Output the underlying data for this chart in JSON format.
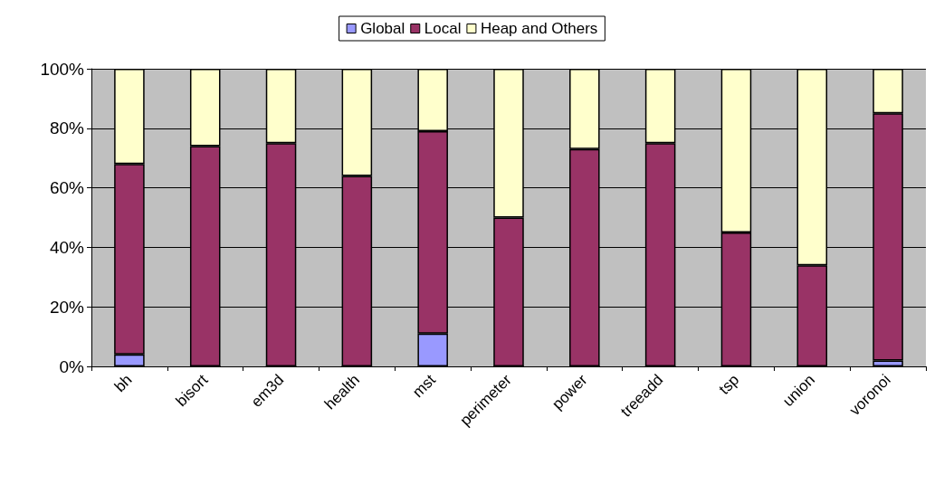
{
  "chart_data": {
    "type": "bar",
    "stacked": true,
    "categories": [
      "bh",
      "bisort",
      "em3d",
      "health",
      "mst",
      "perimeter",
      "power",
      "treeadd",
      "tsp",
      "union",
      "voronoi"
    ],
    "series": [
      {
        "name": "Global",
        "color": "#9999ff",
        "values": [
          4,
          0,
          0,
          0,
          11,
          0,
          0,
          0,
          0,
          0,
          2
        ]
      },
      {
        "name": "Local",
        "color": "#993366",
        "values": [
          64,
          74,
          75,
          64,
          68,
          50,
          73,
          75,
          45,
          34,
          83
        ]
      },
      {
        "name": "Heap and Others",
        "color": "#ffffcc",
        "values": [
          32,
          26,
          25,
          36,
          21,
          50,
          27,
          25,
          55,
          66,
          15
        ]
      }
    ],
    "ylim": [
      0,
      100
    ],
    "yticks": [
      {
        "value": 0,
        "label": "0%"
      },
      {
        "value": 20,
        "label": "20%"
      },
      {
        "value": 40,
        "label": "40%"
      },
      {
        "value": 60,
        "label": "60%"
      },
      {
        "value": 80,
        "label": "80%"
      },
      {
        "value": 100,
        "label": "100%"
      }
    ],
    "grid": "y",
    "legend": "top"
  }
}
